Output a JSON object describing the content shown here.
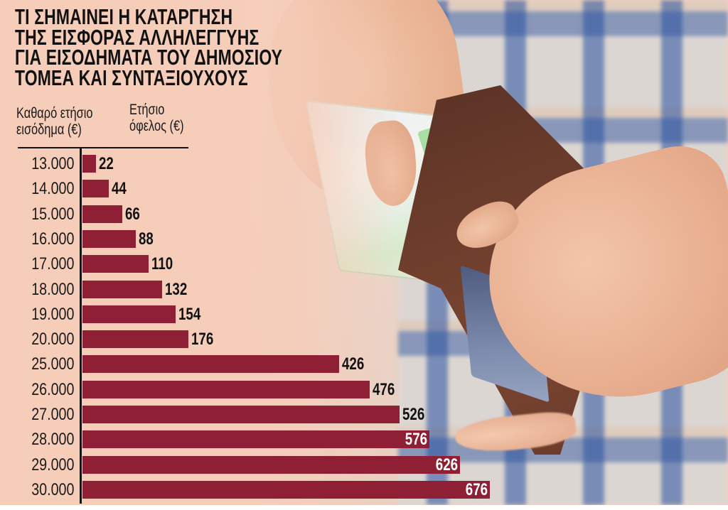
{
  "title_lines": [
    "ΤΙ ΣΗΜΑΙΝΕΙ Η ΚΑΤΑΡΓΗΣΗ",
    "ΤΗΣ ΕΙΣΦΟΡΑΣ ΑΛΛΗΛΕΓΓΥΗΣ",
    "ΓΙΑ ΕΙΣΟΔΗΜΑΤΑ ΤΟΥ ΔΗΜΟΣΙΟΥ",
    "ΤΟΜΕΑ ΚΑΙ ΣΥΝΤΑΞΙΟΥΧΟΥΣ"
  ],
  "column_headers": {
    "left": [
      "Καθαρό ετήσιο",
      "εισόδημα (€)"
    ],
    "right": [
      "Ετήσιο",
      "όφελος (€)"
    ]
  },
  "colors": {
    "bar": "#8f1f35",
    "background": "#f6cdb9",
    "label_dark": "#111111",
    "label_light": "#ffffff"
  },
  "chart_data": {
    "type": "bar",
    "orientation": "horizontal",
    "title": "ΤΙ ΣΗΜΑΙΝΕΙ Η ΚΑΤΑΡΓΗΣΗ ΤΗΣ ΕΙΣΦΟΡΑΣ ΑΛΛΗΛΕΓΓΥΗΣ ΓΙΑ ΕΙΣΟΔΗΜΑΤΑ ΤΟΥ ΔΗΜΟΣΙΟΥ ΤΟΜΕΑ ΚΑΙ ΣΥΝΤΑΞΙΟΥΧΟΥΣ",
    "xlabel": "Ετήσιο όφελος (€)",
    "ylabel": "Καθαρό ετήσιο εισόδημα (€)",
    "categories": [
      "13.000",
      "14.000",
      "15.000",
      "16.000",
      "17.000",
      "18.000",
      "19.000",
      "20.000",
      "25.000",
      "26.000",
      "27.000",
      "28.000",
      "29.000",
      "30.000"
    ],
    "values": [
      22,
      44,
      66,
      88,
      110,
      132,
      154,
      176,
      426,
      476,
      526,
      576,
      626,
      676
    ],
    "value_labels": [
      "22",
      "44",
      "66",
      "88",
      "110",
      "132",
      "154",
      "176",
      "426",
      "476",
      "526",
      "576",
      "626",
      "676"
    ],
    "labels_inside_bar": [
      false,
      false,
      false,
      false,
      false,
      false,
      false,
      false,
      false,
      false,
      false,
      true,
      true,
      true
    ],
    "xlim": [
      0,
      676
    ],
    "grid": false,
    "legend": null
  }
}
